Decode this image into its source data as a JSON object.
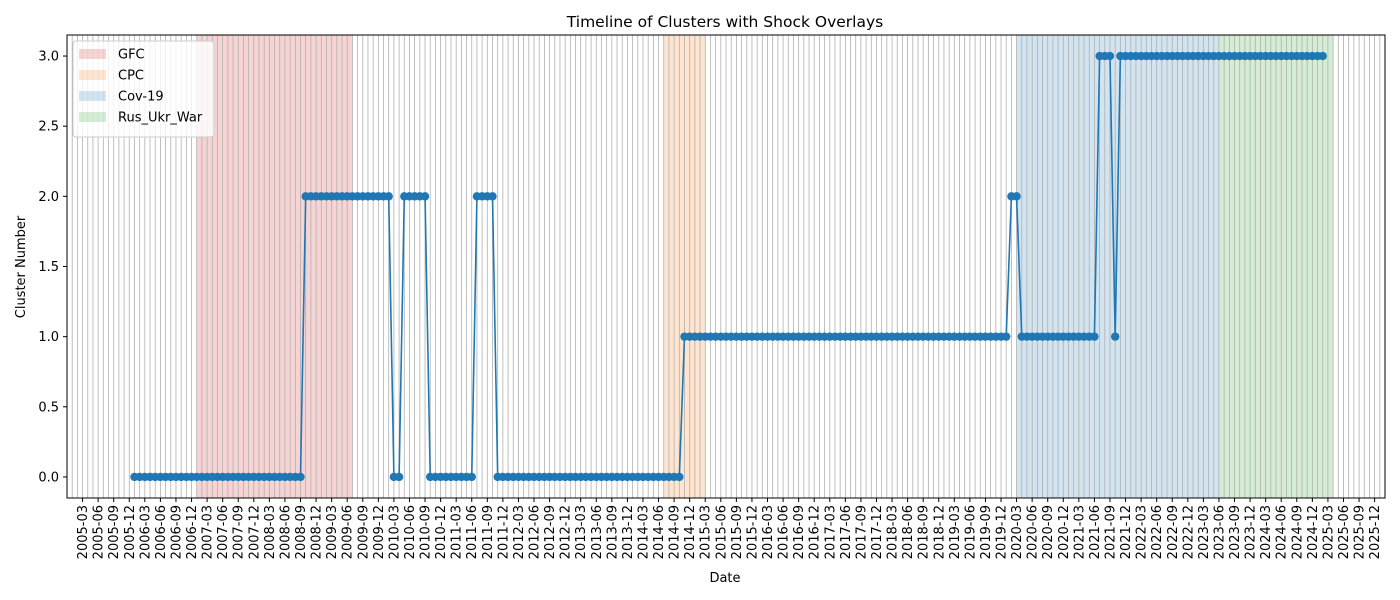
{
  "chart_data": {
    "type": "line",
    "title": "Timeline of Clusters with Shock Overlays",
    "xlabel": "Date",
    "ylabel": "Cluster Number",
    "ylim": [
      -0.15,
      3.15
    ],
    "yticks": [
      "0.0",
      "0.5",
      "1.0",
      "1.5",
      "2.0",
      "2.5",
      "3.0"
    ],
    "xlim": [
      "2004-12",
      "2026-02"
    ],
    "x_grid": true,
    "y_grid": false,
    "legend_position": "upper-left",
    "line_color": "#1f77b4",
    "xticks": [
      "2005-03",
      "2005-06",
      "2005-09",
      "2005-12",
      "2006-03",
      "2006-06",
      "2006-09",
      "2006-12",
      "2007-03",
      "2007-06",
      "2007-09",
      "2007-12",
      "2008-03",
      "2008-06",
      "2008-09",
      "2008-12",
      "2009-03",
      "2009-06",
      "2009-09",
      "2009-12",
      "2010-03",
      "2010-06",
      "2010-09",
      "2010-12",
      "2011-03",
      "2011-06",
      "2011-09",
      "2011-12",
      "2012-03",
      "2012-06",
      "2012-09",
      "2012-12",
      "2013-03",
      "2013-06",
      "2013-09",
      "2013-12",
      "2014-03",
      "2014-06",
      "2014-09",
      "2014-12",
      "2015-03",
      "2015-06",
      "2015-09",
      "2015-12",
      "2016-03",
      "2016-06",
      "2016-09",
      "2016-12",
      "2017-03",
      "2017-06",
      "2017-09",
      "2017-12",
      "2018-03",
      "2018-06",
      "2018-09",
      "2018-12",
      "2019-03",
      "2019-06",
      "2019-09",
      "2019-12",
      "2020-03",
      "2020-06",
      "2020-09",
      "2020-12",
      "2021-03",
      "2021-06",
      "2021-09",
      "2021-12",
      "2022-03",
      "2022-06",
      "2022-09",
      "2022-12",
      "2023-03",
      "2023-06",
      "2023-09",
      "2023-12",
      "2024-03",
      "2024-06",
      "2024-09",
      "2024-12",
      "2025-03",
      "2025-06",
      "2025-09",
      "2025-12"
    ],
    "shocks": [
      {
        "name": "GFC",
        "color": "#d62728",
        "opacity": 0.2,
        "ranges": [
          [
            "2007-01",
            "2009-06"
          ]
        ]
      },
      {
        "name": "CPC",
        "color": "#ff7f0e",
        "opacity": 0.2,
        "ranges": [
          [
            "2014-07",
            "2015-02"
          ]
        ]
      },
      {
        "name": "Cov-19",
        "color": "#1f77b4",
        "opacity": 0.2,
        "ranges": [
          [
            "2020-03",
            "2021-12"
          ],
          [
            "2022-01",
            "2023-05"
          ]
        ]
      },
      {
        "name": "Rus_Ukr_War",
        "color": "#2ca02c",
        "opacity": 0.2,
        "ranges": [
          [
            "2023-06",
            "2024-02"
          ],
          [
            "2024-03",
            "2025-03"
          ]
        ]
      }
    ],
    "series": [
      {
        "start": "2006-01",
        "segments": [
          {
            "months": 33,
            "value": 0
          },
          {
            "months": 17,
            "value": 2
          },
          {
            "months": 2,
            "value": 0
          },
          {
            "months": 5,
            "value": 2
          },
          {
            "months": 9,
            "value": 0
          },
          {
            "months": 4,
            "value": 2
          },
          {
            "months": 36,
            "value": 0
          },
          {
            "months": 63,
            "value": 1
          },
          {
            "months": 2,
            "value": 2
          },
          {
            "months": 15,
            "value": 1
          },
          {
            "months": 3,
            "value": 3
          },
          {
            "months": 1,
            "value": 1
          },
          {
            "months": 40,
            "value": 3
          }
        ]
      }
    ]
  }
}
